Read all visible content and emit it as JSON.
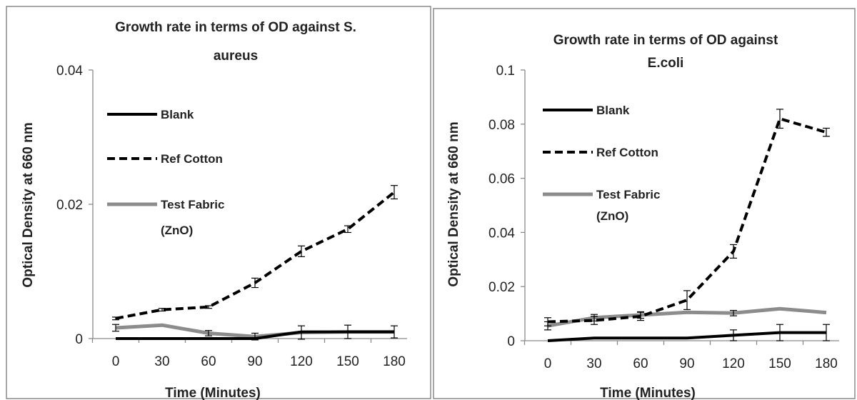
{
  "colors": {
    "blank": "#000000",
    "ref_cotton": "#000000",
    "test_fabric": "#8c8c8c",
    "frame": "#8a8a8a",
    "axis": "#8a8a8a",
    "error_bar": "#000000"
  },
  "chart_data": [
    {
      "type": "line",
      "title_lines": [
        "Growth rate in terms of OD against S.",
        "aureus"
      ],
      "xlabel": "Time (Minutes)",
      "ylabel": "Optical Density  at 660 nm",
      "x": [
        0,
        30,
        60,
        90,
        120,
        150,
        180
      ],
      "xlim": [
        0,
        180
      ],
      "ylim": [
        0,
        0.04
      ],
      "yticks": [
        0,
        0.02,
        0.04
      ],
      "ytick_labels": [
        "0",
        "0.02",
        "0.04"
      ],
      "xtick_labels": [
        "0",
        "30",
        "60",
        "90",
        "120",
        "150",
        "180"
      ],
      "grid": false,
      "legend_position": "left",
      "series": [
        {
          "key": "blank",
          "label_lines": [
            "Blank"
          ],
          "style": "solid",
          "values": [
            0,
            0,
            0,
            0,
            0.001,
            0.001,
            0.001
          ],
          "errors": [
            0,
            0,
            0,
            0,
            0,
            0,
            0
          ]
        },
        {
          "key": "ref_cotton",
          "label_lines": [
            "Ref Cotton"
          ],
          "style": "dashed",
          "values": [
            0.003,
            0.0043,
            0.0047,
            0.0083,
            0.013,
            0.0163,
            0.0218
          ],
          "errors": [
            0.0002,
            0.0002,
            0.0002,
            0.0007,
            0.0008,
            0.0005,
            0.001
          ]
        },
        {
          "key": "test_fabric",
          "label_lines": [
            "Test Fabric",
            "(ZnO)"
          ],
          "style": "solid-thick",
          "values": [
            0.0016,
            0.002,
            0.0008,
            0.0003,
            0.0009,
            0.001,
            0.001
          ],
          "errors": [
            0.0005,
            0,
            0.0004,
            0.0005,
            0.001,
            0.001,
            0.0009
          ]
        }
      ]
    },
    {
      "type": "line",
      "title_lines": [
        "Growth rate in terms of OD against",
        "E.coli"
      ],
      "xlabel": "Time (Minutes)",
      "ylabel": "Optical Density at 660 nm",
      "x": [
        0,
        30,
        60,
        90,
        120,
        150,
        180
      ],
      "xlim": [
        0,
        180
      ],
      "ylim": [
        0,
        0.1
      ],
      "yticks": [
        0,
        0.02,
        0.04,
        0.06,
        0.08,
        0.1
      ],
      "ytick_labels": [
        "0",
        "0.02",
        "0.04",
        "0.06",
        "0.08",
        "0.1"
      ],
      "xtick_labels": [
        "0",
        "30",
        "60",
        "90",
        "120",
        "150",
        "180"
      ],
      "grid": false,
      "legend_position": "left",
      "series": [
        {
          "key": "blank",
          "label_lines": [
            "Blank"
          ],
          "style": "solid",
          "values": [
            0,
            0.001,
            0.001,
            0.001,
            0.002,
            0.003,
            0.003
          ],
          "errors": [
            0,
            0,
            0,
            0,
            0.002,
            0.003,
            0.003
          ]
        },
        {
          "key": "ref_cotton",
          "label_lines": [
            "Ref Cotton"
          ],
          "style": "dashed",
          "values": [
            0.007,
            0.0075,
            0.009,
            0.015,
            0.033,
            0.082,
            0.077
          ],
          "errors": [
            0.0015,
            0.0015,
            0.0015,
            0.0035,
            0.0025,
            0.0035,
            0.0015
          ]
        },
        {
          "key": "test_fabric",
          "label_lines": [
            "Test Fabric",
            "(ZnO)"
          ],
          "style": "solid-thick",
          "values": [
            0.0055,
            0.0085,
            0.0095,
            0.0105,
            0.0102,
            0.0118,
            0.0104
          ],
          "errors": [
            0.0015,
            0.0012,
            0.0012,
            0,
            0.001,
            0,
            0
          ]
        }
      ]
    }
  ]
}
